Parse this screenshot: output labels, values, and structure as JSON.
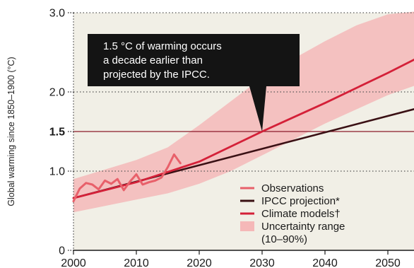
{
  "chart_data": {
    "type": "line",
    "ylabel": "Global warming since 1850–1900 (°C)",
    "xlim": [
      1997,
      2055
    ],
    "ylim": [
      0,
      3.0
    ],
    "x_ticks": [
      2000,
      2010,
      2020,
      2030,
      2040,
      2050
    ],
    "y_ticks": [
      {
        "value": 0,
        "label": "0"
      },
      {
        "value": 1.0,
        "label": "1.0"
      },
      {
        "value": 1.5,
        "label": "1.5"
      },
      {
        "value": 2.0,
        "label": "2.0"
      },
      {
        "value": 3.0,
        "label": "3.0"
      }
    ],
    "threshold": {
      "value": 1.5,
      "color": "#8b1a2b"
    },
    "series": [
      {
        "name": "Observations",
        "color": "#e8606a",
        "x": [
          2000,
          2001,
          2002,
          2003,
          2004,
          2005,
          2006,
          2007,
          2008,
          2009,
          2010,
          2011,
          2012,
          2013,
          2014,
          2015,
          2016,
          2017
        ],
        "y": [
          0.62,
          0.78,
          0.85,
          0.83,
          0.77,
          0.88,
          0.84,
          0.9,
          0.76,
          0.87,
          0.96,
          0.83,
          0.86,
          0.88,
          0.92,
          1.05,
          1.21,
          1.1
        ]
      },
      {
        "name": "IPCC projection*",
        "color": "#3a1014",
        "x": [
          2000,
          2055
        ],
        "y": [
          0.66,
          1.8
        ]
      },
      {
        "name": "Climate models†",
        "color": "#d42038",
        "x": [
          2000,
          2010,
          2020,
          2030,
          2040,
          2050,
          2055
        ],
        "y": [
          0.66,
          0.86,
          1.12,
          1.5,
          1.86,
          2.24,
          2.44
        ]
      }
    ],
    "band": {
      "name": "Uncertainty range (10–90%)",
      "color": "#f5b8b8",
      "x": [
        2000,
        2005,
        2010,
        2015,
        2020,
        2025,
        2030,
        2035,
        2040,
        2045,
        2050,
        2055
      ],
      "lower": [
        0.48,
        0.56,
        0.64,
        0.72,
        0.84,
        1.0,
        1.2,
        1.4,
        1.6,
        1.78,
        1.96,
        2.1
      ],
      "upper": [
        0.9,
        1.02,
        1.14,
        1.3,
        1.58,
        1.88,
        2.18,
        2.42,
        2.64,
        2.84,
        2.98,
        3.02
      ]
    },
    "legend": {
      "placement": "bottom-right",
      "entries": [
        "Observations",
        "IPCC projection*",
        "Climate models†",
        "Uncertainty range",
        "(10–90%)"
      ]
    },
    "annotation": {
      "lines": [
        "1.5 °C of warming occurs",
        "a decade earlier than",
        "projected by the IPCC."
      ],
      "x": 2030,
      "y": 1.5
    },
    "plot_background": "#f1efe6"
  }
}
